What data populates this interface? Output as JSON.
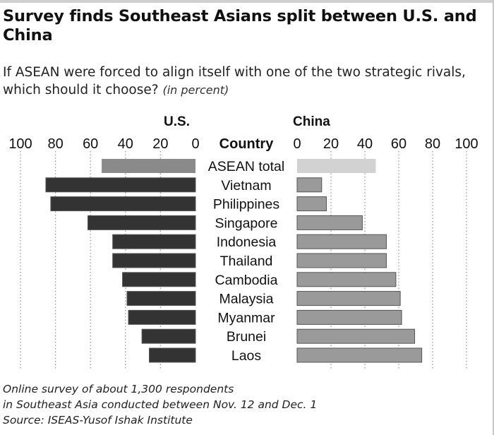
{
  "title": "Survey finds Southeast Asians split between U.S. and China",
  "subtitle": "If ASEAN were forced to align itself with one of the two strategic rivals, which should it choose?",
  "unit_note": "(in percent)",
  "footnote_lines": [
    "Online survey of about 1,300 respondents",
    "in Southeast Asia conducted between Nov. 12 and Dec. 1",
    "Source: ISEAS-Yusof Ishak Institute"
  ],
  "chart_data": {
    "type": "bar",
    "layout": "back-to-back horizontal bars",
    "category_header": "Country",
    "categories": [
      "ASEAN total",
      "Vietnam",
      "Philippines",
      "Singapore",
      "Indonesia",
      "Thailand",
      "Cambodia",
      "Malaysia",
      "Myanmar",
      "Brunei",
      "Laos"
    ],
    "series": [
      {
        "name": "U.S.",
        "values": [
          53.6,
          85.5,
          82.7,
          61.5,
          47.3,
          47.3,
          41.7,
          39.1,
          38.3,
          30.6,
          26.4
        ],
        "xlim": [
          0,
          100
        ],
        "ticks": [
          100,
          80,
          60,
          40,
          20,
          0
        ],
        "direction": "leftward",
        "color": "#333333",
        "total_color": "#8a8a8a"
      },
      {
        "name": "China",
        "values": [
          46.4,
          14.5,
          17.3,
          38.5,
          52.7,
          52.7,
          58.3,
          60.9,
          61.7,
          69.4,
          73.6
        ],
        "xlim": [
          0,
          100
        ],
        "ticks": [
          0,
          20,
          40,
          60,
          80,
          100
        ],
        "direction": "rightward",
        "color": "#9a9a9a",
        "total_color": "#d2d2d2"
      }
    ],
    "grid": "dotted vertical lines",
    "bar_edge_color": "#555555"
  }
}
